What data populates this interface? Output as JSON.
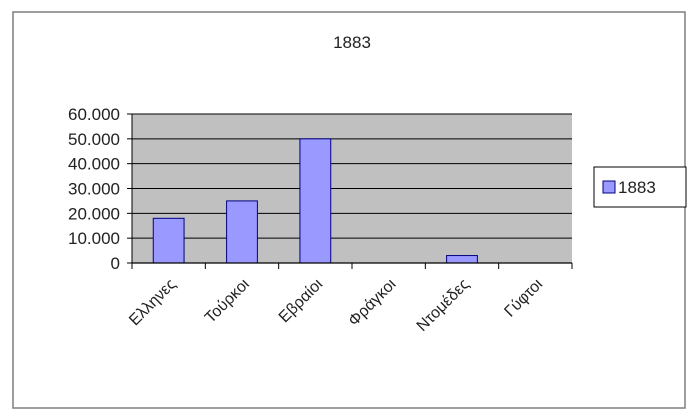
{
  "chart_data": {
    "type": "bar",
    "title": "1883",
    "categories": [
      "Ελληνες",
      "Τούρκοι",
      "Εβραίοι",
      "Φράγκοι",
      "Ντομέδες",
      "Γύφτοι"
    ],
    "series": [
      {
        "name": "1883",
        "values": [
          18000,
          25000,
          50000,
          0,
          3000,
          0
        ]
      }
    ],
    "ylim": [
      0,
      60000
    ],
    "yticks": [
      "0",
      "10.000",
      "20.000",
      "30.000",
      "40.000",
      "50.000",
      "60.000"
    ],
    "xlabel": "",
    "ylabel": "",
    "grid": true,
    "legend": "right",
    "colors": {
      "plot_background": "#c0c0c0",
      "bar_fill": "#9999ff",
      "bar_stroke": "#000080",
      "grid": "#000000",
      "frame": "#808080"
    }
  }
}
